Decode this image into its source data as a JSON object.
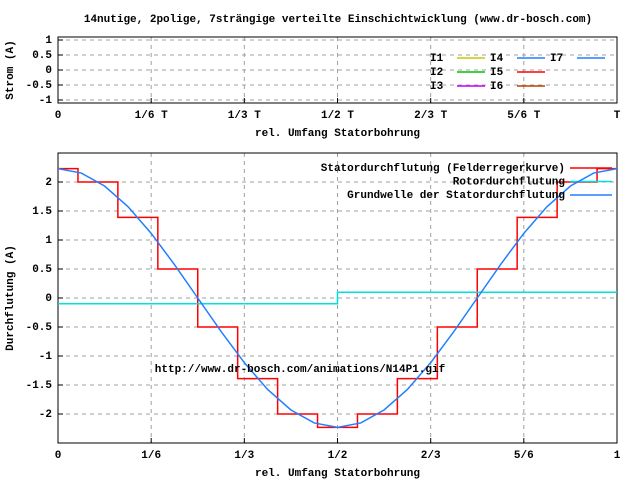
{
  "title": "14nutige, 2polige, 7strängige verteilte Einschichtwicklung (www.dr-bosch.com)",
  "chart_data": [
    {
      "type": "line",
      "xlabel": "rel. Umfang Statorbohrung",
      "ylabel": "Strom (A)",
      "xlim": [
        0,
        1
      ],
      "ylim": [
        -1.1,
        1.1
      ],
      "xticks": [
        {
          "value": 0,
          "label": "0"
        },
        {
          "value": 0.1667,
          "label": "1/6 T"
        },
        {
          "value": 0.3333,
          "label": "1/3 T"
        },
        {
          "value": 0.5,
          "label": "1/2 T"
        },
        {
          "value": 0.6667,
          "label": "2/3 T"
        },
        {
          "value": 0.8333,
          "label": "5/6 T"
        },
        {
          "value": 1,
          "label": "T"
        }
      ],
      "yticks": [
        1,
        0.5,
        0,
        -0.5,
        -1
      ],
      "grid": true,
      "series": [
        {
          "name": "I1",
          "color": "#c8c800",
          "x": [],
          "values": []
        },
        {
          "name": "I2",
          "color": "#00c000",
          "x": [],
          "values": []
        },
        {
          "name": "I3",
          "color": "#c000ff",
          "x": [],
          "values": []
        },
        {
          "name": "I4",
          "color": "#2080ff",
          "x": [],
          "values": []
        },
        {
          "name": "I5",
          "color": "#ff0000",
          "x": [],
          "values": []
        },
        {
          "name": "I6",
          "color": "#c04000",
          "x": [],
          "values": []
        },
        {
          "name": "I7",
          "color": "#2080ff",
          "x": [],
          "values": []
        }
      ]
    },
    {
      "type": "line",
      "xlabel": "rel. Umfang Statorbohrung",
      "ylabel": "Durchflutung (A)",
      "xlim": [
        0,
        1
      ],
      "ylim": [
        -2.5,
        2.5
      ],
      "xticks": [
        {
          "value": 0,
          "label": "0"
        },
        {
          "value": 0.1667,
          "label": "1/6"
        },
        {
          "value": 0.3333,
          "label": "1/3"
        },
        {
          "value": 0.5,
          "label": "1/2"
        },
        {
          "value": 0.6667,
          "label": "2/3"
        },
        {
          "value": 0.8333,
          "label": "5/6"
        },
        {
          "value": 1,
          "label": "1"
        }
      ],
      "yticks": [
        2,
        1.5,
        1,
        0.5,
        0,
        -0.5,
        -1,
        -1.5,
        -2
      ],
      "grid": true,
      "annotation": "http://www.dr-bosch.com/animations/N14P1.gif",
      "series": [
        {
          "name": "Statordurchflutung (Felderregerkurve)",
          "color": "#ff0000",
          "x": [
            0,
            0.0357,
            0.0357,
            0.1071,
            0.1071,
            0.1786,
            0.1786,
            0.25,
            0.25,
            0.3214,
            0.3214,
            0.3929,
            0.3929,
            0.4643,
            0.4643,
            0.5357,
            0.5357,
            0.6071,
            0.6071,
            0.6786,
            0.6786,
            0.75,
            0.75,
            0.8214,
            0.8214,
            0.8929,
            0.8929,
            0.9643,
            0.9643,
            1
          ],
          "values": [
            2.23,
            2.23,
            2.0,
            2.0,
            1.39,
            1.39,
            0.5,
            0.5,
            -0.5,
            -0.5,
            -1.39,
            -1.39,
            -2.0,
            -2.0,
            -2.23,
            -2.23,
            -2.0,
            -2.0,
            -1.39,
            -1.39,
            -0.5,
            -0.5,
            0.5,
            0.5,
            1.39,
            1.39,
            2.0,
            2.0,
            2.23,
            2.23
          ]
        },
        {
          "name": "Rotordurchflutung",
          "color": "#00e0e0",
          "x": [
            0,
            0.5,
            0.5,
            1
          ],
          "values": [
            -0.1,
            -0.1,
            0.1,
            0.1
          ]
        },
        {
          "name": "Grundwelle der Statordurchflutung",
          "color": "#2080ff",
          "x": [
            0,
            0.0417,
            0.0833,
            0.125,
            0.1667,
            0.2083,
            0.25,
            0.2917,
            0.3333,
            0.375,
            0.4167,
            0.4583,
            0.5,
            0.5417,
            0.5833,
            0.625,
            0.6667,
            0.7083,
            0.75,
            0.7917,
            0.8333,
            0.875,
            0.9167,
            0.9583,
            1
          ],
          "values": [
            2.23,
            2.154,
            1.931,
            1.577,
            1.115,
            0.577,
            0,
            -0.577,
            -1.115,
            -1.577,
            -1.931,
            -2.154,
            -2.23,
            -2.154,
            -1.931,
            -1.577,
            -1.115,
            -0.577,
            0,
            0.577,
            1.115,
            1.577,
            1.931,
            2.154,
            2.23
          ]
        }
      ]
    }
  ]
}
